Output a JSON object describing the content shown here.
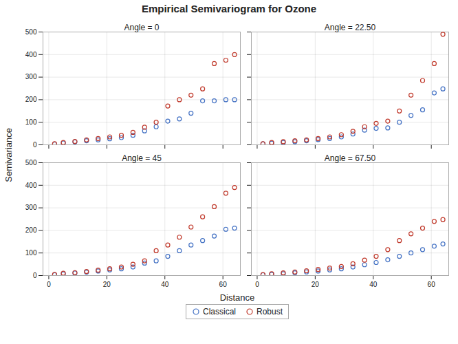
{
  "chart_data": {
    "type": "scatter",
    "title": "Empirical Semivariogram for Ozone",
    "xlabel": "Distance",
    "ylabel": "Semivariance",
    "xlim": [
      -2,
      66
    ],
    "ylim": [
      0,
      500
    ],
    "xticks": [
      0,
      20,
      40,
      60
    ],
    "yticks": [
      0,
      100,
      200,
      300,
      400,
      500
    ],
    "grid": true,
    "legend": "bottom",
    "panels": [
      {
        "title": "Angle = 0",
        "series": [
          {
            "name": "Classical",
            "color": "#4472C4",
            "marker": "circle",
            "x": [
              2,
              5,
              9,
              13,
              17,
              21,
              25,
              29,
              33,
              37,
              41,
              45,
              49,
              53,
              57,
              61,
              64
            ],
            "values": [
              3,
              8,
              13,
              18,
              22,
              27,
              32,
              42,
              62,
              80,
              105,
              115,
              140,
              195,
              195,
              200,
              200
            ]
          },
          {
            "name": "Robust",
            "color": "#C0392B",
            "marker": "circle",
            "x": [
              2,
              5,
              9,
              13,
              17,
              21,
              25,
              29,
              33,
              37,
              41,
              45,
              49,
              53,
              57,
              61,
              64
            ],
            "values": [
              5,
              10,
              15,
              22,
              28,
              35,
              42,
              55,
              78,
              100,
              172,
              200,
              220,
              248,
              360,
              375,
              400
            ]
          }
        ]
      },
      {
        "title": "Angle = 22.50",
        "series": [
          {
            "name": "Classical",
            "color": "#4472C4",
            "marker": "circle",
            "x": [
              2,
              5,
              9,
              13,
              17,
              21,
              25,
              29,
              33,
              37,
              41,
              45,
              49,
              53,
              57,
              61,
              64
            ],
            "values": [
              4,
              7,
              10,
              14,
              18,
              23,
              28,
              35,
              48,
              65,
              73,
              75,
              100,
              130,
              155,
              230,
              248
            ]
          },
          {
            "name": "Robust",
            "color": "#C0392B",
            "marker": "circle",
            "x": [
              2,
              5,
              9,
              13,
              17,
              21,
              25,
              29,
              33,
              37,
              41,
              45,
              49,
              53,
              57,
              61,
              64
            ],
            "values": [
              5,
              10,
              14,
              18,
              22,
              28,
              35,
              45,
              60,
              80,
              95,
              105,
              150,
              220,
              285,
              360,
              490
            ]
          }
        ]
      },
      {
        "title": "Angle = 45",
        "series": [
          {
            "name": "Classical",
            "color": "#4472C4",
            "marker": "circle",
            "x": [
              2,
              5,
              9,
              13,
              17,
              21,
              25,
              29,
              33,
              37,
              41,
              45,
              49,
              53,
              57,
              61,
              64
            ],
            "values": [
              3,
              7,
              11,
              15,
              20,
              25,
              30,
              38,
              55,
              65,
              85,
              110,
              135,
              155,
              175,
              205,
              210
            ]
          },
          {
            "name": "Robust",
            "color": "#C0392B",
            "marker": "circle",
            "x": [
              2,
              5,
              9,
              13,
              17,
              21,
              25,
              29,
              33,
              37,
              41,
              45,
              49,
              53,
              57,
              61,
              64
            ],
            "values": [
              5,
              10,
              13,
              18,
              24,
              30,
              38,
              50,
              65,
              110,
              135,
              170,
              215,
              260,
              305,
              365,
              390
            ]
          }
        ]
      },
      {
        "title": "Angle = 67.50",
        "series": [
          {
            "name": "Classical",
            "color": "#4472C4",
            "marker": "circle",
            "x": [
              2,
              5,
              9,
              13,
              17,
              21,
              25,
              29,
              33,
              37,
              41,
              45,
              49,
              53,
              57,
              61,
              64
            ],
            "values": [
              3,
              5,
              8,
              12,
              16,
              20,
              25,
              30,
              38,
              48,
              58,
              70,
              85,
              100,
              115,
              130,
              140
            ]
          },
          {
            "name": "Robust",
            "color": "#C0392B",
            "marker": "circle",
            "x": [
              2,
              5,
              9,
              13,
              17,
              21,
              25,
              29,
              33,
              37,
              41,
              45,
              49,
              53,
              57,
              61,
              64
            ],
            "values": [
              4,
              8,
              12,
              16,
              21,
              27,
              33,
              40,
              52,
              68,
              85,
              115,
              155,
              185,
              210,
              240,
              248
            ]
          }
        ]
      }
    ]
  }
}
